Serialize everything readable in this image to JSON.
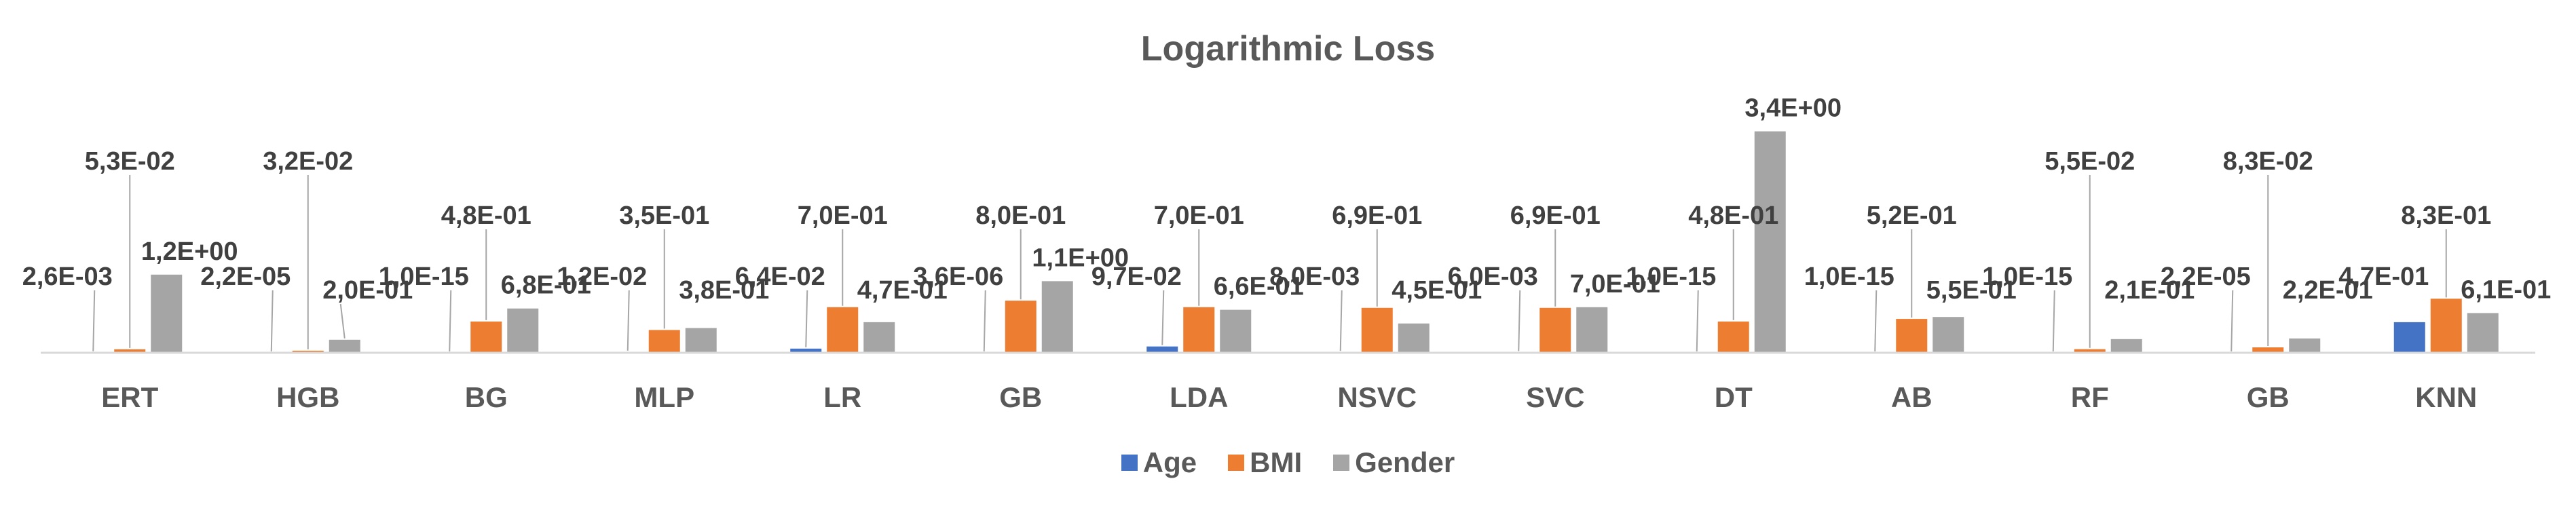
{
  "chart_data": {
    "type": "bar",
    "title": "Logarithmic Loss",
    "categories": [
      "ERT",
      "HGB",
      "BG",
      "MLP",
      "LR",
      "GB",
      "LDA",
      "NSVC",
      "SVC",
      "DT",
      "AB",
      "RF",
      "GB",
      "KNN"
    ],
    "series": [
      {
        "name": "Age",
        "color": "#4472C4",
        "values": [
          0.0026,
          2.2e-05,
          1e-15,
          0.012,
          0.064,
          3.6e-06,
          0.097,
          0.008,
          0.006,
          1e-15,
          1e-15,
          1e-15,
          2.2e-05,
          0.47
        ],
        "labels": [
          "2,6E-03",
          "2,2E-05",
          "1,0E-15",
          "1,2E-02",
          "6,4E-02",
          "3,6E-06",
          "9,7E-02",
          "8,0E-03",
          "6,0E-03",
          "1,0E-15",
          "1,0E-15",
          "1,0E-15",
          "2,2E-05",
          "4,7E-01"
        ]
      },
      {
        "name": "BMI",
        "color": "#ED7D31",
        "values": [
          0.053,
          0.032,
          0.48,
          0.35,
          0.7,
          0.8,
          0.7,
          0.69,
          0.69,
          0.48,
          0.52,
          0.055,
          0.083,
          0.83
        ],
        "labels": [
          "5,3E-02",
          "3,2E-02",
          "4,8E-01",
          "3,5E-01",
          "7,0E-01",
          "8,0E-01",
          "7,0E-01",
          "6,9E-01",
          "6,9E-01",
          "4,8E-01",
          "5,2E-01",
          "5,5E-02",
          "8,3E-02",
          "8,3E-01"
        ]
      },
      {
        "name": "Gender",
        "color": "#A5A5A5",
        "values": [
          1.2,
          0.2,
          0.68,
          0.38,
          0.47,
          1.1,
          0.66,
          0.45,
          0.7,
          3.4,
          0.55,
          0.21,
          0.22,
          0.61
        ],
        "labels": [
          "1,2E+00",
          "2,0E-01",
          "6,8E-01",
          "3,8E-01",
          "4,7E-01",
          "1,1E+00",
          "6,6E-01",
          "4,5E-01",
          "7,0E-01",
          "3,4E+00",
          "5,5E-01",
          "2,1E-01",
          "2,2E-01",
          "6,1E-01"
        ]
      }
    ],
    "legend_position": "bottom",
    "grid": false
  }
}
